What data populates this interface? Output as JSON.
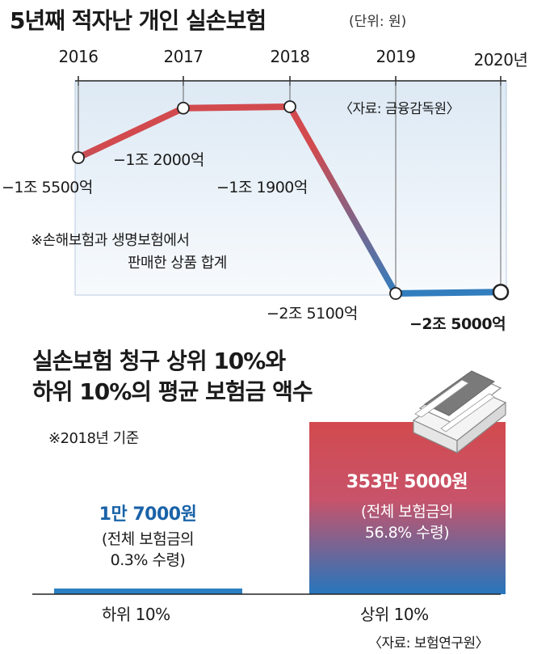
{
  "top": {
    "title": "5년째 적자난 개인 실손보험",
    "unit": "(단위: 원)",
    "source": "〈자료: 금융감독원〉",
    "note_line1": "※손해보험과 생명보험에서",
    "note_line2": "판매한 상품 합계"
  },
  "bottom": {
    "title_line1": "실손보험 청구 상위 10%와",
    "title_line2": "하위 10%의 평균 보험금 액수",
    "basis": "※2018년 기준",
    "source": "〈자료: 보험연구원〉"
  },
  "colors": {
    "red": "#d24a4e",
    "blue": "#2b7fc2",
    "panel": "#e4eef7",
    "dark_blue": "#1a63a8"
  },
  "chart_data": [
    {
      "type": "line",
      "title": "5년째 적자난 개인 실손보험",
      "unit": "원",
      "x": [
        "2016",
        "2017",
        "2018",
        "2019",
        "2020년"
      ],
      "values": [
        -15500,
        -12000,
        -11900,
        -25100,
        -25000
      ],
      "value_unit": "억 원",
      "labels": [
        "−1조 5500억",
        "−1조 2000억",
        "−1조 1900억",
        "−2조 5100억",
        "−2조 5000억"
      ],
      "color_gradient": [
        "#d24a4e",
        "#2b7fc2"
      ],
      "grid": false
    },
    {
      "type": "bar",
      "title": "실손보험 청구 상위 10%와 하위 10%의 평균 보험금 액수",
      "categories": [
        "하위 10%",
        "상위 10%"
      ],
      "values": [
        17000,
        3535000
      ],
      "value_unit": "원",
      "value_labels": [
        "1만 7000원",
        "353만 5000원"
      ],
      "share_labels": [
        [
          "(전체 보험금의",
          "0.3% 수령)"
        ],
        [
          "(전체 보험금의",
          "56.8% 수령)"
        ]
      ]
    }
  ]
}
